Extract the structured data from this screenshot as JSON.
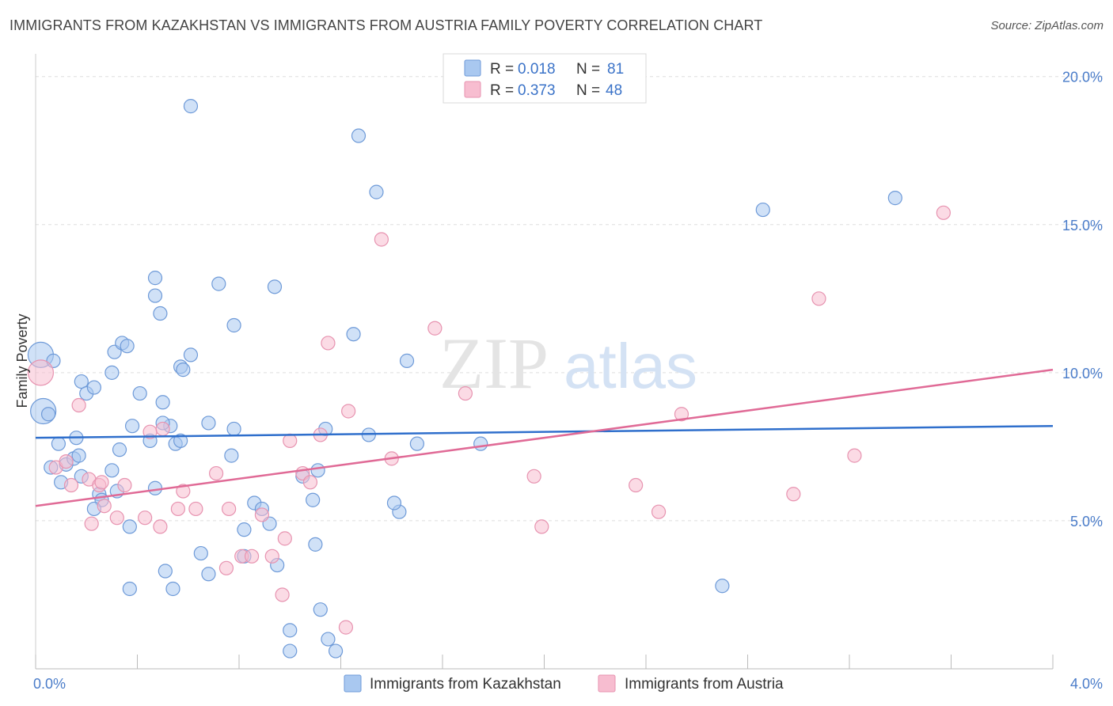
{
  "title": "IMMIGRANTS FROM KAZAKHSTAN VS IMMIGRANTS FROM AUSTRIA FAMILY POVERTY CORRELATION CHART",
  "source": "Source: ZipAtlas.com",
  "colors": {
    "blue_fill": "#a9c8f0",
    "blue_stroke": "#6e9ad8",
    "blue_line": "#2f6fcc",
    "pink_fill": "#f7bdd0",
    "pink_stroke": "#e793b0",
    "pink_line": "#e06a96",
    "grid": "#dddddd",
    "tick_text": "#4a7cc9"
  },
  "legend": {
    "r_label": "R =",
    "n_label": "N =",
    "items": [
      {
        "r": "0.018",
        "n": "81"
      },
      {
        "r": "0.373",
        "n": "48"
      }
    ]
  },
  "chart_data": {
    "type": "scatter",
    "xlabel": "",
    "ylabel": "Family Poverty",
    "xlim": [
      0,
      4
    ],
    "ylim": [
      0,
      20.5
    ],
    "x_ticks": [
      "0.0%",
      "4.0%"
    ],
    "y_ticks": [
      {
        "value": 5,
        "label": "5.0%"
      },
      {
        "value": 10,
        "label": "10.0%"
      },
      {
        "value": 15,
        "label": "15.0%"
      },
      {
        "value": 20,
        "label": "20.0%"
      }
    ],
    "grid": "horizontal dashed",
    "watermark": "ZIPatlas",
    "series": [
      {
        "name": "Immigrants from Kazakhstan",
        "trend": {
          "x": [
            0,
            4
          ],
          "y": [
            7.8,
            8.2
          ]
        },
        "points": [
          [
            0.02,
            10.6
          ],
          [
            0.07,
            10.4
          ],
          [
            0.03,
            8.7
          ],
          [
            0.05,
            8.6
          ],
          [
            0.09,
            7.6
          ],
          [
            0.18,
            9.7
          ],
          [
            0.2,
            9.3
          ],
          [
            0.16,
            7.8
          ],
          [
            0.23,
            9.5
          ],
          [
            0.3,
            10.0
          ],
          [
            0.31,
            10.7
          ],
          [
            0.34,
            11.0
          ],
          [
            0.36,
            10.9
          ],
          [
            0.47,
            12.6
          ],
          [
            0.49,
            12.0
          ],
          [
            0.47,
            13.2
          ],
          [
            0.61,
            10.6
          ],
          [
            0.57,
            10.2
          ],
          [
            0.58,
            10.1
          ],
          [
            0.33,
            7.4
          ],
          [
            0.3,
            6.7
          ],
          [
            0.38,
            8.2
          ],
          [
            0.41,
            9.3
          ],
          [
            0.5,
            9.0
          ],
          [
            0.45,
            7.7
          ],
          [
            0.53,
            8.2
          ],
          [
            0.55,
            7.6
          ],
          [
            0.57,
            7.7
          ],
          [
            0.68,
            8.3
          ],
          [
            0.72,
            13.0
          ],
          [
            0.78,
            11.6
          ],
          [
            0.94,
            12.9
          ],
          [
            0.06,
            6.8
          ],
          [
            0.1,
            6.3
          ],
          [
            0.12,
            6.9
          ],
          [
            0.15,
            7.1
          ],
          [
            0.17,
            7.2
          ],
          [
            0.18,
            6.5
          ],
          [
            0.25,
            5.9
          ],
          [
            0.26,
            5.7
          ],
          [
            0.23,
            5.4
          ],
          [
            0.32,
            6.0
          ],
          [
            0.5,
            8.3
          ],
          [
            0.47,
            6.1
          ],
          [
            0.51,
            3.3
          ],
          [
            0.37,
            4.8
          ],
          [
            0.37,
            2.7
          ],
          [
            0.54,
            2.7
          ],
          [
            0.65,
            3.9
          ],
          [
            0.68,
            3.2
          ],
          [
            0.77,
            7.2
          ],
          [
            0.78,
            8.1
          ],
          [
            0.82,
            4.7
          ],
          [
            0.82,
            3.8
          ],
          [
            0.86,
            5.6
          ],
          [
            0.89,
            5.4
          ],
          [
            0.92,
            4.9
          ],
          [
            0.95,
            3.5
          ],
          [
            1.0,
            0.6
          ],
          [
            1.18,
            0.6
          ],
          [
            1.05,
            6.5
          ],
          [
            1.09,
            5.7
          ],
          [
            1.11,
            6.7
          ],
          [
            1.1,
            4.2
          ],
          [
            1.0,
            1.3
          ],
          [
            1.14,
            8.1
          ],
          [
            1.25,
            11.3
          ],
          [
            1.31,
            7.9
          ],
          [
            1.46,
            10.4
          ],
          [
            1.5,
            7.6
          ],
          [
            1.75,
            7.6
          ],
          [
            1.43,
            5.3
          ],
          [
            1.41,
            5.6
          ],
          [
            1.15,
            1.0
          ],
          [
            1.12,
            2.0
          ],
          [
            1.27,
            18.0
          ],
          [
            1.34,
            16.1
          ],
          [
            0.61,
            19.0
          ],
          [
            2.86,
            15.5
          ],
          [
            3.38,
            15.9
          ],
          [
            2.7,
            2.8
          ]
        ]
      },
      {
        "name": "Immigrants from Austria",
        "trend": {
          "x": [
            0,
            4
          ],
          "y": [
            5.5,
            10.1
          ]
        },
        "points": [
          [
            0.02,
            10.0
          ],
          [
            0.08,
            6.8
          ],
          [
            0.12,
            7.0
          ],
          [
            0.14,
            6.2
          ],
          [
            0.17,
            8.9
          ],
          [
            0.21,
            6.4
          ],
          [
            0.25,
            6.2
          ],
          [
            0.26,
            6.3
          ],
          [
            0.27,
            5.5
          ],
          [
            0.22,
            4.9
          ],
          [
            0.32,
            5.1
          ],
          [
            0.35,
            6.2
          ],
          [
            0.43,
            5.1
          ],
          [
            0.45,
            8.0
          ],
          [
            0.49,
            4.8
          ],
          [
            0.5,
            8.1
          ],
          [
            0.56,
            5.4
          ],
          [
            0.58,
            6.0
          ],
          [
            0.63,
            5.4
          ],
          [
            0.71,
            6.6
          ],
          [
            0.76,
            5.4
          ],
          [
            0.81,
            3.8
          ],
          [
            0.75,
            3.4
          ],
          [
            0.85,
            3.8
          ],
          [
            0.89,
            5.2
          ],
          [
            0.93,
            3.8
          ],
          [
            0.97,
            2.5
          ],
          [
            0.98,
            4.4
          ],
          [
            1.05,
            6.6
          ],
          [
            1.0,
            7.7
          ],
          [
            1.12,
            7.9
          ],
          [
            1.08,
            6.3
          ],
          [
            1.15,
            11.0
          ],
          [
            1.22,
            1.4
          ],
          [
            1.23,
            8.7
          ],
          [
            1.4,
            7.1
          ],
          [
            1.57,
            11.5
          ],
          [
            1.36,
            14.5
          ],
          [
            1.69,
            9.3
          ],
          [
            1.96,
            6.5
          ],
          [
            1.99,
            4.8
          ],
          [
            2.36,
            6.2
          ],
          [
            2.45,
            5.3
          ],
          [
            2.54,
            8.6
          ],
          [
            2.98,
            5.9
          ],
          [
            3.08,
            12.5
          ],
          [
            3.22,
            7.2
          ],
          [
            3.57,
            15.4
          ]
        ]
      }
    ]
  }
}
